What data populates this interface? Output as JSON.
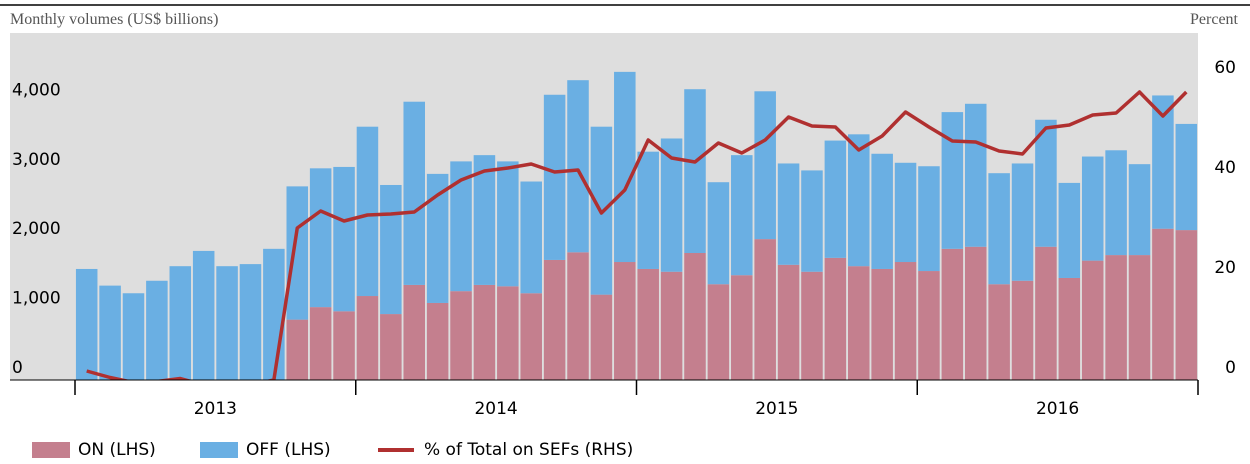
{
  "chart_data": {
    "type": "bar",
    "stacked": true,
    "y_axis_label": "Monthly volumes (US$ billions)",
    "y2_axis_label": "Percent",
    "categories": [
      null,
      null,
      null,
      null,
      null,
      null,
      null,
      null,
      null,
      null,
      null,
      null,
      null,
      null,
      null,
      null,
      null,
      null,
      null,
      null,
      null,
      null,
      null,
      null,
      null,
      null,
      null,
      null,
      null,
      null,
      null,
      null,
      null,
      null,
      null,
      null,
      null,
      null,
      null,
      null,
      null,
      null,
      null,
      null,
      null,
      null,
      null,
      null
    ],
    "year_labels": [
      "2013",
      "2014",
      "2015",
      "2016"
    ],
    "series": [
      {
        "name": "ON (LHS)",
        "type": "bar",
        "color": "#c47f8e",
        "values": [
          0,
          0,
          0,
          0,
          0,
          0,
          0,
          0,
          0,
          870,
          1050,
          990,
          1210,
          950,
          1370,
          1110,
          1280,
          1370,
          1350,
          1250,
          1730,
          1840,
          1230,
          1700,
          1600,
          1560,
          1830,
          1380,
          1510,
          2030,
          1660,
          1560,
          1760,
          1640,
          1600,
          1700,
          1570,
          1890,
          1920,
          1380,
          1430,
          1920,
          1470,
          1720,
          1800,
          1800,
          2180,
          2160
        ]
      },
      {
        "name": "OFF (LHS)",
        "type": "bar",
        "color": "#6aafe3",
        "values": [
          1600,
          1360,
          1250,
          1430,
          1640,
          1860,
          1640,
          1670,
          1890,
          1920,
          2000,
          2080,
          2440,
          1860,
          2640,
          1860,
          1870,
          1870,
          1800,
          1610,
          2380,
          2480,
          2420,
          2740,
          1690,
          1920,
          2360,
          1470,
          1730,
          2130,
          1460,
          1460,
          1690,
          1900,
          1660,
          1430,
          1510,
          1970,
          2060,
          1600,
          1690,
          1830,
          1370,
          1500,
          1510,
          1310,
          1920,
          1530
        ]
      },
      {
        "name": "% of Total on SEFs (RHS)",
        "type": "line",
        "axis": "y2",
        "color": "#b03030",
        "values": [
          1.8,
          0.5,
          -0.5,
          -0.3,
          0.3,
          -1,
          -1,
          -1,
          0,
          30.4,
          33.8,
          31.8,
          33,
          33.2,
          33.6,
          37,
          40,
          41.8,
          42.4,
          43.2,
          41.6,
          42,
          33.4,
          38,
          48,
          44.4,
          43.6,
          47.4,
          45.4,
          48,
          52.6,
          50.8,
          50.6,
          46,
          48.8,
          53.6,
          50.6,
          47.8,
          47.6,
          45.8,
          45.2,
          50.4,
          51,
          53,
          53.4,
          57.6,
          52.8,
          57.6
        ]
      }
    ],
    "ylim": [
      0,
      5000
    ],
    "yticks": [
      0,
      {
        "value": 1000,
        "label": "1,000"
      },
      {
        "value": 2000,
        "label": "2,000"
      },
      {
        "value": 3000,
        "label": "3,000"
      },
      {
        "value": 4000,
        "label": "4,000"
      }
    ],
    "y2lim": [
      0,
      69.4
    ],
    "y2ticks": [
      0,
      20,
      40,
      60
    ],
    "grid": false,
    "legend": "bottom"
  }
}
